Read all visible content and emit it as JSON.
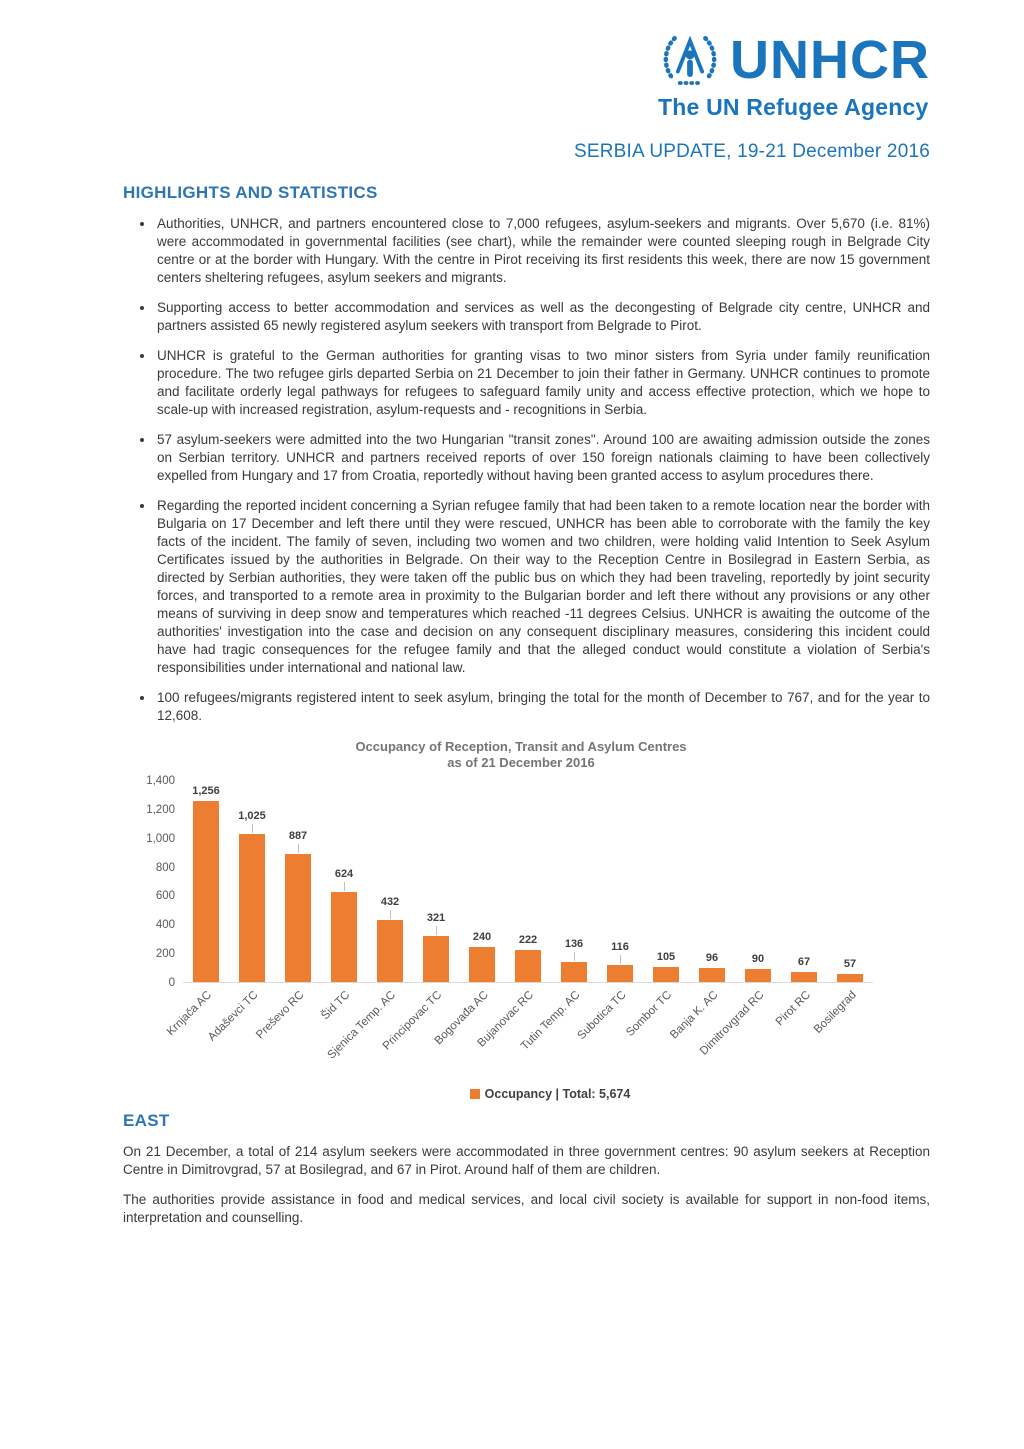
{
  "header": {
    "logo": {
      "brand": "UNHCR",
      "tagline": "The UN Refugee Agency"
    },
    "doc_title": "SERBIA UPDATE, 19-21 December 2016"
  },
  "highlights": {
    "heading": "HIGHLIGHTS AND STATISTICS",
    "bullets": [
      "Authorities, UNHCR, and partners encountered close to 7,000 refugees, asylum-seekers and migrants. Over 5,670 (i.e. 81%) were accommodated in governmental facilities (see chart), while the remainder were counted sleeping rough in Belgrade City centre or at the border with Hungary.  With the centre in Pirot receiving its first residents this week, there are now 15 government centers sheltering refugees, asylum seekers and migrants.",
      "Supporting access to better accommodation and services as well as the decongesting of Belgrade city centre, UNHCR and partners assisted 65 newly registered asylum seekers with transport from Belgrade to Pirot.",
      "UNHCR is grateful to the German authorities for granting visas to two minor sisters from Syria under family reunification procedure. The two refugee girls departed Serbia on 21 December to join their father in Germany. UNHCR continues to promote and facilitate orderly legal pathways for refugees to safeguard family unity and access effective protection, which we hope to scale-up with increased registration, asylum-requests and - recognitions in Serbia.",
      "57 asylum-seekers were admitted into the two Hungarian \"transit zones\".  Around 100 are awaiting admission outside the zones on Serbian territory. UNHCR and partners received reports of over 150 foreign nationals claiming to have been collectively expelled from Hungary and 17 from Croatia, reportedly without having been granted access to asylum procedures there.",
      "Regarding the reported incident concerning a Syrian refugee family that had been taken to a remote location near the border with Bulgaria on 17 December and left there until they were rescued, UNHCR has been able to corroborate with the family the key facts of the incident. The family of seven, including two women and two children, were holding valid Intention to Seek Asylum Certificates issued by the authorities in Belgrade. On their way to the Reception Centre in Bosilegrad in Eastern Serbia, as directed by Serbian authorities, they were taken off the public bus on which they had been traveling, reportedly by joint security forces, and transported to a remote area in proximity to the Bulgarian border and left there without any provisions or any other means of surviving in deep snow and temperatures which reached -11 degrees Celsius. UNHCR is awaiting the outcome of the authorities' investigation into the case and decision on any consequent disciplinary measures, considering this incident could have had tragic consequences for the refugee family and that the alleged conduct would constitute a violation of Serbia's responsibilities under international and national law.",
      "100 refugees/migrants registered intent to seek asylum, bringing the total for the month of December to 767, and for the year to 12,608."
    ]
  },
  "chart_data": {
    "type": "bar",
    "title": "Occupancy of Reception, Transit and Asylum Centres",
    "subtitle": "as of 21 December 2016",
    "categories": [
      "Krnjača AC",
      "Adaševci TC",
      "Preševo RC",
      "Šid TC",
      "Sjenica Temp. AC",
      "Principovac TC",
      "Bogovađa AC",
      "Bujanovac RC",
      "Tutin Temp. AC",
      "Subotica TC",
      "Sombor TC",
      "Banja K. AC",
      "Dimitrovgrad RC",
      "Pirot RC",
      "Bosilegrad"
    ],
    "values": [
      1256,
      1025,
      887,
      624,
      432,
      321,
      240,
      222,
      136,
      116,
      105,
      96,
      90,
      67,
      57
    ],
    "value_labels": [
      "1,256",
      "1,025",
      "887",
      "624",
      "432",
      "321",
      "240",
      "222",
      "136",
      "116",
      "105",
      "96",
      "90",
      "67",
      "57"
    ],
    "label_leaders": [
      false,
      true,
      true,
      true,
      true,
      true,
      false,
      false,
      true,
      true,
      false,
      false,
      false,
      false,
      false
    ],
    "ylim": [
      0,
      1400
    ],
    "ytick_values": [
      1400,
      1200,
      1000,
      800,
      600,
      400,
      200,
      0
    ],
    "ytick_labels": [
      "1,400",
      "1,200",
      "1,000",
      "800",
      "600",
      "400",
      "200",
      "0"
    ],
    "legend": "Occupancy | Total: 5,674",
    "legend_position": "bottom",
    "grid": false,
    "bar_color": "#ed7d31",
    "xlabel": "",
    "ylabel": ""
  },
  "east": {
    "heading": "EAST",
    "paragraphs": [
      "On 21 December, a total of 214 asylum seekers were accommodated in three government centres: 90 asylum seekers at Reception Centre in Dimitrovgrad, 57 at Bosilegrad, and 67 in Pirot. Around half of them are children.",
      "The authorities provide assistance in food and medical services, and local civil society is available for support in non-food items, interpretation and counselling."
    ]
  },
  "colors": {
    "logo_blue": "#1b75bc",
    "heading_blue": "#2e75b6",
    "bar_orange": "#ed7d31",
    "body_text": "#3a3a3a",
    "axis_gray": "#595959",
    "chart_title_gray": "#757575"
  }
}
